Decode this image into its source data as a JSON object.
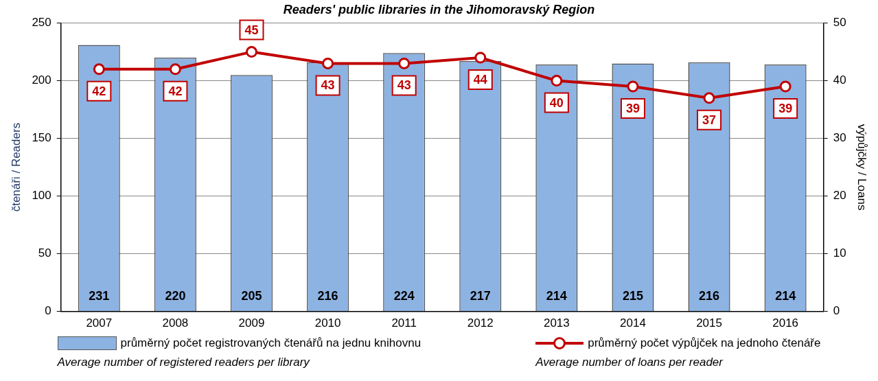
{
  "chart_data": {
    "type": "bar",
    "title": "Readers' public libraries in the Jihomoravský Region",
    "ylabel": "čtenáři / Readers",
    "y2label": "výpůjčky / Loans",
    "categories": [
      "2007",
      "2008",
      "2009",
      "2010",
      "2011",
      "2012",
      "2013",
      "2014",
      "2015",
      "2016"
    ],
    "series": [
      {
        "name": "průměrný počet registrovaných čtenářů na jednu knihovnu",
        "color": "#8db3e2",
        "values": [
          231,
          220,
          205,
          216,
          224,
          217,
          214,
          215,
          216,
          214
        ]
      },
      {
        "name": "průměrný počet výpůjček na jednoho čtenáře",
        "type": "line",
        "axis": "y2",
        "color": "#c00000",
        "values": [
          42,
          42,
          45,
          43,
          43,
          44,
          40,
          39,
          37,
          39
        ]
      }
    ],
    "annotations": [
      "Average number of registered readers per library",
      "Average number of loans per reader"
    ],
    "ylim": [
      0,
      250
    ],
    "yticks": [
      0,
      50,
      100,
      150,
      200,
      250
    ],
    "y2lim": [
      0,
      50
    ],
    "y2ticks": [
      0,
      10,
      20,
      30,
      40,
      50
    ],
    "grid": "y",
    "legend": "bottom",
    "marker": "circle",
    "line_style": "solid",
    "data_labels": true
  }
}
